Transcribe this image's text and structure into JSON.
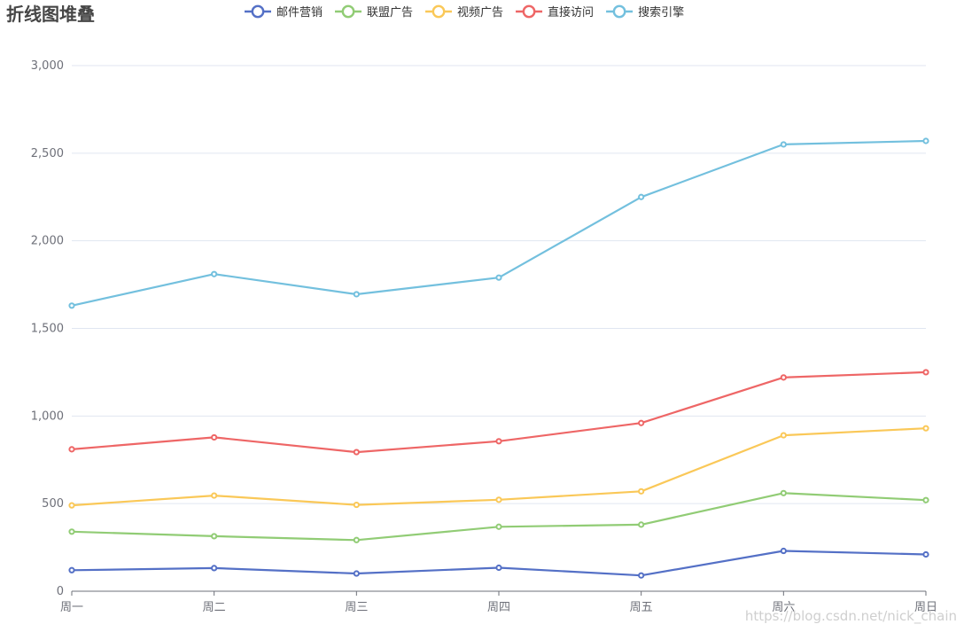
{
  "chart_data": {
    "type": "line",
    "stacked": true,
    "title": "折线图堆叠",
    "categories": [
      "周一",
      "周二",
      "周三",
      "周四",
      "周五",
      "周六",
      "周日"
    ],
    "series": [
      {
        "name": "邮件营销",
        "color": "#5470c6",
        "values": [
          120,
          132,
          101,
          134,
          90,
          230,
          210
        ]
      },
      {
        "name": "联盟广告",
        "color": "#91cc75",
        "values": [
          220,
          182,
          191,
          234,
          290,
          330,
          310
        ]
      },
      {
        "name": "视频广告",
        "color": "#fac858",
        "values": [
          150,
          232,
          201,
          154,
          190,
          330,
          410
        ]
      },
      {
        "name": "直接访问",
        "color": "#ee6666",
        "values": [
          320,
          332,
          301,
          334,
          390,
          330,
          320
        ]
      },
      {
        "name": "搜索引擎",
        "color": "#73c0de",
        "values": [
          820,
          932,
          901,
          934,
          1290,
          1330,
          1320
        ]
      }
    ],
    "ylim": [
      0,
      3000
    ],
    "yticks": [
      "0",
      "500",
      "1,000",
      "1,500",
      "2,000",
      "2,500",
      "3,000"
    ],
    "xlabel": "",
    "ylabel": "",
    "grid": "horizontal",
    "legend": "top-center",
    "watermark": "https://blog.csdn.net/nick_chain"
  }
}
